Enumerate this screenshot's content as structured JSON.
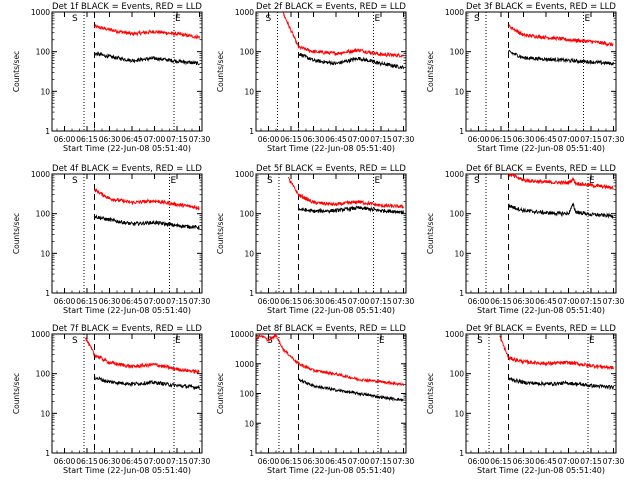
{
  "figure": {
    "colors": {
      "events": "#000000",
      "lld": "#ff0000",
      "axes": "#000000",
      "background": "#ffffff"
    },
    "xlabel": "Start Time (22-Jun-08 05:51:40)",
    "ylabel": "Counts/sec",
    "x_tick_labels": [
      "06:00",
      "06:15",
      "06:30",
      "06:45",
      "07:00",
      "07:15",
      "07:30"
    ],
    "marker_s": "S",
    "marker_e": "E"
  },
  "chart_data": [
    {
      "type": "line",
      "title": "Det 1f BLACK = Events, RED = LLD",
      "xlim": [
        "05:51:40",
        "07:31:40"
      ],
      "ylim": [
        1,
        1000
      ],
      "yscale": "log",
      "y_tick_labels": [
        "1000",
        "100",
        "10",
        "1"
      ],
      "x_ticks": [
        "06:00",
        "06:15",
        "06:30",
        "06:45",
        "07:00",
        "07:15",
        "07:30"
      ],
      "lines": {
        "dotted": [
          "06:13",
          "07:13"
        ],
        "dashed": [
          "06:20"
        ]
      },
      "series": [
        {
          "name": "LLD",
          "color": "red",
          "x": [
            "06:20",
            "06:30",
            "06:45",
            "07:00",
            "07:15",
            "07:30"
          ],
          "values": [
            430,
            360,
            280,
            320,
            280,
            230
          ]
        },
        {
          "name": "Events",
          "color": "black",
          "x": [
            "06:20",
            "06:30",
            "06:45",
            "07:00",
            "07:15",
            "07:30"
          ],
          "values": [
            90,
            75,
            60,
            68,
            58,
            50
          ]
        }
      ]
    },
    {
      "type": "line",
      "title": "Det 2f BLACK = Events, RED = LLD",
      "xlim": [
        "05:51:40",
        "07:31:40"
      ],
      "ylim": [
        1,
        1000
      ],
      "yscale": "log",
      "y_tick_labels": [
        "1000",
        "100",
        "10",
        "1"
      ],
      "x_ticks": [
        "06:00",
        "06:15",
        "06:30",
        "06:45",
        "07:00",
        "07:15",
        "07:30"
      ],
      "lines": {
        "dotted": [
          "06:06",
          "07:10"
        ],
        "dashed": [
          "06:20"
        ]
      },
      "series": [
        {
          "name": "LLD",
          "color": "red",
          "x": [
            "06:10",
            "06:20",
            "06:30",
            "06:45",
            "07:00",
            "07:15",
            "07:30"
          ],
          "values": [
            900,
            130,
            100,
            90,
            110,
            85,
            80
          ]
        },
        {
          "name": "Events",
          "color": "black",
          "x": [
            "06:20",
            "06:30",
            "06:45",
            "07:00",
            "07:15",
            "07:30"
          ],
          "values": [
            90,
            60,
            50,
            68,
            50,
            40
          ]
        }
      ]
    },
    {
      "type": "line",
      "title": "Det 3f BLACK = Events, RED = LLD",
      "xlim": [
        "05:51:40",
        "07:31:40"
      ],
      "ylim": [
        1,
        1000
      ],
      "yscale": "log",
      "y_tick_labels": [
        "1000",
        "100",
        "10",
        "1"
      ],
      "x_ticks": [
        "06:00",
        "06:15",
        "06:30",
        "06:45",
        "07:00",
        "07:15",
        "07:30"
      ],
      "lines": {
        "dotted": [
          "06:05",
          "07:10"
        ],
        "dashed": [
          "06:20"
        ]
      },
      "series": [
        {
          "name": "LLD",
          "color": "red",
          "x": [
            "06:20",
            "06:30",
            "06:45",
            "07:00",
            "07:15",
            "07:30"
          ],
          "values": [
            450,
            260,
            230,
            200,
            180,
            150
          ]
        },
        {
          "name": "Events",
          "color": "black",
          "x": [
            "06:20",
            "06:30",
            "06:45",
            "07:00",
            "07:15",
            "07:30"
          ],
          "values": [
            100,
            70,
            65,
            60,
            55,
            50
          ]
        }
      ]
    },
    {
      "type": "line",
      "title": "Det 4f BLACK = Events, RED = LLD",
      "xlim": [
        "05:51:40",
        "07:31:40"
      ],
      "ylim": [
        1,
        1000
      ],
      "yscale": "log",
      "y_tick_labels": [
        "1000",
        "100",
        "10",
        "1"
      ],
      "x_ticks": [
        "06:00",
        "06:15",
        "06:30",
        "06:45",
        "07:00",
        "07:15",
        "07:30"
      ],
      "lines": {
        "dotted": [
          "06:13",
          "07:10"
        ],
        "dashed": [
          "06:20"
        ]
      },
      "series": [
        {
          "name": "LLD",
          "color": "red",
          "x": [
            "06:20",
            "06:30",
            "06:45",
            "07:00",
            "07:15",
            "07:30"
          ],
          "values": [
            400,
            240,
            190,
            210,
            170,
            140
          ]
        },
        {
          "name": "Events",
          "color": "black",
          "x": [
            "06:20",
            "06:30",
            "06:45",
            "07:00",
            "07:15",
            "07:30"
          ],
          "values": [
            85,
            70,
            55,
            60,
            50,
            45
          ]
        }
      ]
    },
    {
      "type": "line",
      "title": "Det 5f BLACK = Events, RED = LLD",
      "xlim": [
        "05:51:40",
        "07:31:40"
      ],
      "ylim": [
        1,
        1000
      ],
      "yscale": "log",
      "y_tick_labels": [
        "1000",
        "100",
        "10",
        "1"
      ],
      "x_ticks": [
        "06:00",
        "06:15",
        "06:30",
        "06:45",
        "07:00",
        "07:15",
        "07:30"
      ],
      "lines": {
        "dotted": [
          "06:07",
          "07:10"
        ],
        "dashed": [
          "06:20"
        ]
      },
      "series": [
        {
          "name": "LLD",
          "color": "red",
          "x": [
            "06:13",
            "06:20",
            "06:30",
            "06:45",
            "07:00",
            "07:15",
            "07:30"
          ],
          "values": [
            800,
            300,
            190,
            170,
            200,
            160,
            150
          ]
        },
        {
          "name": "Events",
          "color": "black",
          "x": [
            "06:20",
            "06:30",
            "06:45",
            "07:00",
            "07:15",
            "07:30"
          ],
          "values": [
            130,
            115,
            120,
            140,
            120,
            110
          ]
        }
      ]
    },
    {
      "type": "line",
      "title": "Det 6f BLACK = Events, RED = LLD",
      "xlim": [
        "05:51:40",
        "07:31:40"
      ],
      "ylim": [
        1,
        1000
      ],
      "yscale": "log",
      "y_tick_labels": [
        "1000",
        "100",
        "10",
        "1"
      ],
      "x_ticks": [
        "06:00",
        "06:15",
        "06:30",
        "06:45",
        "07:00",
        "07:15",
        "07:30"
      ],
      "lines": {
        "dotted": [
          "06:05",
          "07:13"
        ],
        "dashed": [
          "06:20"
        ]
      },
      "series": [
        {
          "name": "LLD",
          "color": "red",
          "x": [
            "06:20",
            "06:30",
            "06:45",
            "07:00",
            "07:03",
            "07:05",
            "07:15",
            "07:30"
          ],
          "values": [
            1000,
            700,
            620,
            600,
            750,
            580,
            520,
            450
          ]
        },
        {
          "name": "Events",
          "color": "black",
          "x": [
            "06:20",
            "06:30",
            "06:45",
            "07:00",
            "07:03",
            "07:05",
            "07:15",
            "07:30"
          ],
          "values": [
            160,
            120,
            105,
            100,
            170,
            110,
            95,
            88
          ]
        }
      ]
    },
    {
      "type": "line",
      "title": "Det 7f BLACK = Events, RED = LLD",
      "xlim": [
        "05:51:40",
        "07:31:40"
      ],
      "ylim": [
        1,
        1000
      ],
      "yscale": "log",
      "y_tick_labels": [
        "1000",
        "100",
        "10",
        "1"
      ],
      "x_ticks": [
        "06:00",
        "06:15",
        "06:30",
        "06:45",
        "07:00",
        "07:15",
        "07:30"
      ],
      "lines": {
        "dotted": [
          "06:13",
          "07:13"
        ],
        "dashed": [
          "06:20"
        ]
      },
      "series": [
        {
          "name": "LLD",
          "color": "red",
          "x": [
            "06:14",
            "06:20",
            "06:30",
            "06:45",
            "07:00",
            "07:15",
            "07:30"
          ],
          "values": [
            800,
            300,
            190,
            150,
            170,
            130,
            110
          ]
        },
        {
          "name": "Events",
          "color": "black",
          "x": [
            "06:20",
            "06:30",
            "06:45",
            "07:00",
            "07:15",
            "07:30"
          ],
          "values": [
            80,
            62,
            55,
            60,
            50,
            45
          ]
        }
      ]
    },
    {
      "type": "line",
      "title": "Det 8f BLACK = Events, RED = LLD",
      "xlim": [
        "05:51:40",
        "07:31:40"
      ],
      "ylim": [
        1,
        10000
      ],
      "yscale": "log",
      "y_tick_labels": [
        "10000",
        "1000",
        "100",
        "10",
        "1"
      ],
      "x_ticks": [
        "06:00",
        "06:15",
        "06:30",
        "06:45",
        "07:00",
        "07:15",
        "07:30"
      ],
      "lines": {
        "dotted": [
          "06:07",
          "07:13"
        ],
        "dashed": [
          "06:20"
        ]
      },
      "series": [
        {
          "name": "LLD",
          "color": "red",
          "x": [
            "05:52",
            "05:55",
            "06:00",
            "06:05",
            "06:10",
            "06:20",
            "06:30",
            "06:45",
            "07:00",
            "07:15",
            "07:30"
          ],
          "values": [
            7000,
            9000,
            6000,
            9000,
            3000,
            1000,
            600,
            450,
            300,
            250,
            200
          ]
        },
        {
          "name": "Events",
          "color": "black",
          "x": [
            "06:20",
            "06:30",
            "06:45",
            "07:00",
            "07:15",
            "07:30"
          ],
          "values": [
            300,
            180,
            130,
            100,
            75,
            60
          ]
        }
      ]
    },
    {
      "type": "line",
      "title": "Det 9f BLACK = Events, RED = LLD",
      "xlim": [
        "05:51:40",
        "07:31:40"
      ],
      "ylim": [
        1,
        1000
      ],
      "yscale": "log",
      "y_tick_labels": [
        "1000",
        "100",
        "10",
        "1"
      ],
      "x_ticks": [
        "06:00",
        "06:15",
        "06:30",
        "06:45",
        "07:00",
        "07:15",
        "07:30"
      ],
      "lines": {
        "dotted": [
          "06:07",
          "07:13"
        ],
        "dashed": [
          "06:20"
        ]
      },
      "series": [
        {
          "name": "LLD",
          "color": "red",
          "x": [
            "06:14",
            "06:20",
            "06:30",
            "06:45",
            "07:00",
            "07:15",
            "07:30"
          ],
          "values": [
            900,
            250,
            200,
            180,
            190,
            160,
            140
          ]
        },
        {
          "name": "Events",
          "color": "black",
          "x": [
            "06:20",
            "06:30",
            "06:45",
            "07:00",
            "07:15",
            "07:30"
          ],
          "values": [
            75,
            60,
            55,
            58,
            50,
            45
          ]
        }
      ]
    }
  ]
}
